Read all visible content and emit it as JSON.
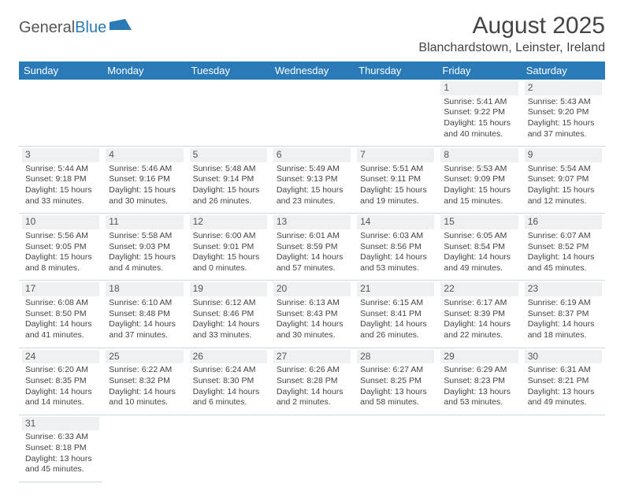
{
  "brand": {
    "general": "General",
    "blue": "Blue"
  },
  "title": "August 2025",
  "location": "Blanchardstown, Leinster, Ireland",
  "colors": {
    "header_bg": "#2b7ab8",
    "header_text": "#ffffff",
    "text": "#444444",
    "stripe": "#eef0f2",
    "rule": "#cfd8e0"
  },
  "days": [
    "Sunday",
    "Monday",
    "Tuesday",
    "Wednesday",
    "Thursday",
    "Friday",
    "Saturday"
  ],
  "weeks": [
    [
      null,
      null,
      null,
      null,
      null,
      {
        "n": "1",
        "sr": "Sunrise: 5:41 AM",
        "ss": "Sunset: 9:22 PM",
        "dl": "Daylight: 15 hours and 40 minutes."
      },
      {
        "n": "2",
        "sr": "Sunrise: 5:43 AM",
        "ss": "Sunset: 9:20 PM",
        "dl": "Daylight: 15 hours and 37 minutes."
      }
    ],
    [
      {
        "n": "3",
        "sr": "Sunrise: 5:44 AM",
        "ss": "Sunset: 9:18 PM",
        "dl": "Daylight: 15 hours and 33 minutes."
      },
      {
        "n": "4",
        "sr": "Sunrise: 5:46 AM",
        "ss": "Sunset: 9:16 PM",
        "dl": "Daylight: 15 hours and 30 minutes."
      },
      {
        "n": "5",
        "sr": "Sunrise: 5:48 AM",
        "ss": "Sunset: 9:14 PM",
        "dl": "Daylight: 15 hours and 26 minutes."
      },
      {
        "n": "6",
        "sr": "Sunrise: 5:49 AM",
        "ss": "Sunset: 9:13 PM",
        "dl": "Daylight: 15 hours and 23 minutes."
      },
      {
        "n": "7",
        "sr": "Sunrise: 5:51 AM",
        "ss": "Sunset: 9:11 PM",
        "dl": "Daylight: 15 hours and 19 minutes."
      },
      {
        "n": "8",
        "sr": "Sunrise: 5:53 AM",
        "ss": "Sunset: 9:09 PM",
        "dl": "Daylight: 15 hours and 15 minutes."
      },
      {
        "n": "9",
        "sr": "Sunrise: 5:54 AM",
        "ss": "Sunset: 9:07 PM",
        "dl": "Daylight: 15 hours and 12 minutes."
      }
    ],
    [
      {
        "n": "10",
        "sr": "Sunrise: 5:56 AM",
        "ss": "Sunset: 9:05 PM",
        "dl": "Daylight: 15 hours and 8 minutes."
      },
      {
        "n": "11",
        "sr": "Sunrise: 5:58 AM",
        "ss": "Sunset: 9:03 PM",
        "dl": "Daylight: 15 hours and 4 minutes."
      },
      {
        "n": "12",
        "sr": "Sunrise: 6:00 AM",
        "ss": "Sunset: 9:01 PM",
        "dl": "Daylight: 15 hours and 0 minutes."
      },
      {
        "n": "13",
        "sr": "Sunrise: 6:01 AM",
        "ss": "Sunset: 8:59 PM",
        "dl": "Daylight: 14 hours and 57 minutes."
      },
      {
        "n": "14",
        "sr": "Sunrise: 6:03 AM",
        "ss": "Sunset: 8:56 PM",
        "dl": "Daylight: 14 hours and 53 minutes."
      },
      {
        "n": "15",
        "sr": "Sunrise: 6:05 AM",
        "ss": "Sunset: 8:54 PM",
        "dl": "Daylight: 14 hours and 49 minutes."
      },
      {
        "n": "16",
        "sr": "Sunrise: 6:07 AM",
        "ss": "Sunset: 8:52 PM",
        "dl": "Daylight: 14 hours and 45 minutes."
      }
    ],
    [
      {
        "n": "17",
        "sr": "Sunrise: 6:08 AM",
        "ss": "Sunset: 8:50 PM",
        "dl": "Daylight: 14 hours and 41 minutes."
      },
      {
        "n": "18",
        "sr": "Sunrise: 6:10 AM",
        "ss": "Sunset: 8:48 PM",
        "dl": "Daylight: 14 hours and 37 minutes."
      },
      {
        "n": "19",
        "sr": "Sunrise: 6:12 AM",
        "ss": "Sunset: 8:46 PM",
        "dl": "Daylight: 14 hours and 33 minutes."
      },
      {
        "n": "20",
        "sr": "Sunrise: 6:13 AM",
        "ss": "Sunset: 8:43 PM",
        "dl": "Daylight: 14 hours and 30 minutes."
      },
      {
        "n": "21",
        "sr": "Sunrise: 6:15 AM",
        "ss": "Sunset: 8:41 PM",
        "dl": "Daylight: 14 hours and 26 minutes."
      },
      {
        "n": "22",
        "sr": "Sunrise: 6:17 AM",
        "ss": "Sunset: 8:39 PM",
        "dl": "Daylight: 14 hours and 22 minutes."
      },
      {
        "n": "23",
        "sr": "Sunrise: 6:19 AM",
        "ss": "Sunset: 8:37 PM",
        "dl": "Daylight: 14 hours and 18 minutes."
      }
    ],
    [
      {
        "n": "24",
        "sr": "Sunrise: 6:20 AM",
        "ss": "Sunset: 8:35 PM",
        "dl": "Daylight: 14 hours and 14 minutes."
      },
      {
        "n": "25",
        "sr": "Sunrise: 6:22 AM",
        "ss": "Sunset: 8:32 PM",
        "dl": "Daylight: 14 hours and 10 minutes."
      },
      {
        "n": "26",
        "sr": "Sunrise: 6:24 AM",
        "ss": "Sunset: 8:30 PM",
        "dl": "Daylight: 14 hours and 6 minutes."
      },
      {
        "n": "27",
        "sr": "Sunrise: 6:26 AM",
        "ss": "Sunset: 8:28 PM",
        "dl": "Daylight: 14 hours and 2 minutes."
      },
      {
        "n": "28",
        "sr": "Sunrise: 6:27 AM",
        "ss": "Sunset: 8:25 PM",
        "dl": "Daylight: 13 hours and 58 minutes."
      },
      {
        "n": "29",
        "sr": "Sunrise: 6:29 AM",
        "ss": "Sunset: 8:23 PM",
        "dl": "Daylight: 13 hours and 53 minutes."
      },
      {
        "n": "30",
        "sr": "Sunrise: 6:31 AM",
        "ss": "Sunset: 8:21 PM",
        "dl": "Daylight: 13 hours and 49 minutes."
      }
    ],
    [
      {
        "n": "31",
        "sr": "Sunrise: 6:33 AM",
        "ss": "Sunset: 8:18 PM",
        "dl": "Daylight: 13 hours and 45 minutes."
      },
      null,
      null,
      null,
      null,
      null,
      null
    ]
  ]
}
